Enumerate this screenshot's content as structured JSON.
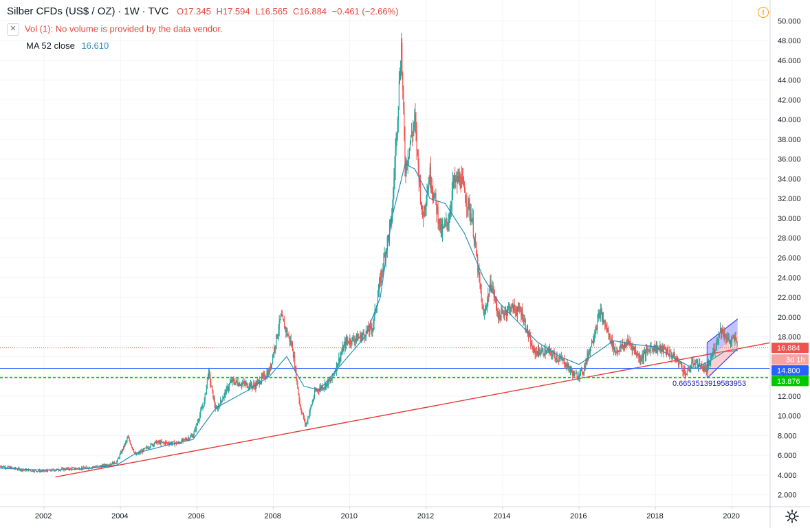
{
  "header": {
    "title": "Silber CFDs (US$ / OZ)",
    "interval": "1W",
    "source": "TVC",
    "ohlc": {
      "open": "O17.345",
      "high": "H17.594",
      "low": "L16.565",
      "close": "C16.884",
      "change": "−0.461 (−2.66%)"
    },
    "vol_text": "Vol (1): No volume is provided by the data vendor.",
    "ma_label": "MA 52 close",
    "ma_value": "16.610",
    "warning_icon": "warning-icon",
    "settings_icon": "gear-icon"
  },
  "chart_data": {
    "type": "candlestick",
    "title": "Silber CFDs (US$ / OZ)",
    "xlabel": "",
    "ylabel": "",
    "ylim": [
      1.0,
      51.0
    ],
    "x_range": [
      2000.85,
      2021.0
    ],
    "y_ticks": [
      "2.000",
      "4.000",
      "6.000",
      "8.000",
      "10.000",
      "12.000",
      "14.000",
      "16.000",
      "18.000",
      "20.000",
      "22.000",
      "24.000",
      "26.000",
      "28.000",
      "30.000",
      "32.000",
      "34.000",
      "36.000",
      "38.000",
      "40.000",
      "42.000",
      "44.000",
      "46.000",
      "48.000",
      "50.000"
    ],
    "x_ticks": [
      "2002",
      "2004",
      "2006",
      "2008",
      "2010",
      "2012",
      "2014",
      "2016",
      "2018",
      "2020"
    ],
    "grid": true,
    "colors": {
      "up": "#26a69a",
      "down": "#ef5350",
      "ma": "#2b8cbe",
      "trendline": "#e53935",
      "support": "#2962ff",
      "fib": "#00d100"
    },
    "price_path": [
      [
        2000.85,
        4.9
      ],
      [
        2001.5,
        4.5
      ],
      [
        2002.0,
        4.4
      ],
      [
        2002.5,
        4.6
      ],
      [
        2003.0,
        4.7
      ],
      [
        2003.5,
        4.9
      ],
      [
        2003.9,
        5.3
      ],
      [
        2004.2,
        7.8
      ],
      [
        2004.4,
        6.0
      ],
      [
        2004.9,
        7.3
      ],
      [
        2005.5,
        7.2
      ],
      [
        2005.9,
        8.0
      ],
      [
        2006.2,
        11.5
      ],
      [
        2006.3,
        14.5
      ],
      [
        2006.5,
        10.5
      ],
      [
        2006.9,
        13.5
      ],
      [
        2007.5,
        13.0
      ],
      [
        2007.9,
        14.5
      ],
      [
        2008.2,
        20.0
      ],
      [
        2008.5,
        17.0
      ],
      [
        2008.7,
        11.0
      ],
      [
        2008.85,
        9.0
      ],
      [
        2009.1,
        12.5
      ],
      [
        2009.5,
        13.5
      ],
      [
        2009.9,
        17.5
      ],
      [
        2010.3,
        18.0
      ],
      [
        2010.6,
        19.0
      ],
      [
        2010.9,
        26.0
      ],
      [
        2011.1,
        30.0
      ],
      [
        2011.3,
        44.0
      ],
      [
        2011.35,
        47.5
      ],
      [
        2011.45,
        35.0
      ],
      [
        2011.7,
        40.0
      ],
      [
        2011.9,
        30.0
      ],
      [
        2012.1,
        34.5
      ],
      [
        2012.4,
        28.5
      ],
      [
        2012.6,
        30.0
      ],
      [
        2012.7,
        33.5
      ],
      [
        2012.9,
        34.0
      ],
      [
        2013.2,
        30.0
      ],
      [
        2013.5,
        20.0
      ],
      [
        2013.7,
        23.5
      ],
      [
        2013.9,
        20.0
      ],
      [
        2014.2,
        21.0
      ],
      [
        2014.5,
        20.5
      ],
      [
        2014.8,
        16.5
      ],
      [
        2015.2,
        16.5
      ],
      [
        2015.6,
        15.5
      ],
      [
        2015.9,
        14.0
      ],
      [
        2016.1,
        14.5
      ],
      [
        2016.3,
        17.0
      ],
      [
        2016.55,
        20.5
      ],
      [
        2016.8,
        18.0
      ],
      [
        2016.95,
        16.5
      ],
      [
        2017.3,
        17.5
      ],
      [
        2017.6,
        15.8
      ],
      [
        2017.9,
        17.0
      ],
      [
        2018.3,
        16.6
      ],
      [
        2018.6,
        15.5
      ],
      [
        2018.8,
        14.2
      ],
      [
        2019.0,
        15.5
      ],
      [
        2019.35,
        14.6
      ],
      [
        2019.6,
        17.5
      ],
      [
        2019.7,
        18.8
      ],
      [
        2019.95,
        17.5
      ],
      [
        2020.12,
        17.8
      ],
      [
        2020.15,
        16.88
      ]
    ],
    "ma_path": [
      [
        2000.85,
        4.7
      ],
      [
        2002.0,
        4.5
      ],
      [
        2003.0,
        4.6
      ],
      [
        2003.9,
        5.0
      ],
      [
        2004.4,
        6.2
      ],
      [
        2005.3,
        7.1
      ],
      [
        2005.9,
        7.6
      ],
      [
        2006.5,
        10.8
      ],
      [
        2007.3,
        12.5
      ],
      [
        2007.9,
        14.0
      ],
      [
        2008.35,
        16.0
      ],
      [
        2008.8,
        13.0
      ],
      [
        2009.2,
        12.6
      ],
      [
        2009.8,
        15.3
      ],
      [
        2010.4,
        18.0
      ],
      [
        2010.8,
        22.0
      ],
      [
        2011.1,
        30.0
      ],
      [
        2011.45,
        35.5
      ],
      [
        2011.7,
        35.0
      ],
      [
        2012.1,
        32.0
      ],
      [
        2012.5,
        31.5
      ],
      [
        2013.0,
        28.5
      ],
      [
        2013.5,
        24.0
      ],
      [
        2013.9,
        21.5
      ],
      [
        2014.4,
        19.5
      ],
      [
        2014.9,
        17.5
      ],
      [
        2015.5,
        16.0
      ],
      [
        2016.0,
        15.2
      ],
      [
        2016.5,
        16.5
      ],
      [
        2016.9,
        17.6
      ],
      [
        2017.5,
        17.2
      ],
      [
        2018.0,
        17.0
      ],
      [
        2018.5,
        15.8
      ],
      [
        2019.0,
        14.8
      ],
      [
        2019.4,
        15.5
      ],
      [
        2019.8,
        16.5
      ],
      [
        2020.15,
        16.6
      ]
    ],
    "trendline": {
      "start": [
        2002.3,
        3.8
      ],
      "end": [
        2021.0,
        17.4
      ]
    },
    "levels": [
      {
        "name": "current-price",
        "value": 16.884,
        "label": "16.884",
        "color": "#ef5350",
        "style": "dotted"
      },
      {
        "name": "support",
        "value": 14.8,
        "label": "14.800",
        "color": "#2962ff",
        "style": "solid"
      },
      {
        "name": "fib",
        "value": 13.876,
        "label": "13.876",
        "color": "#00d100",
        "style": "dashed"
      }
    ],
    "countdown_label": "3d 1h",
    "fib_annotation": "0.6653513919583953",
    "channel_upper": {
      "start": [
        2019.35,
        17.4
      ],
      "end": [
        2020.15,
        19.8
      ]
    },
    "channel_lower": {
      "start": [
        2019.35,
        13.8
      ],
      "end": [
        2020.15,
        16.8
      ]
    },
    "channel_mid": {
      "start": [
        2019.35,
        15.6
      ],
      "end": [
        2020.15,
        18.3
      ]
    }
  }
}
